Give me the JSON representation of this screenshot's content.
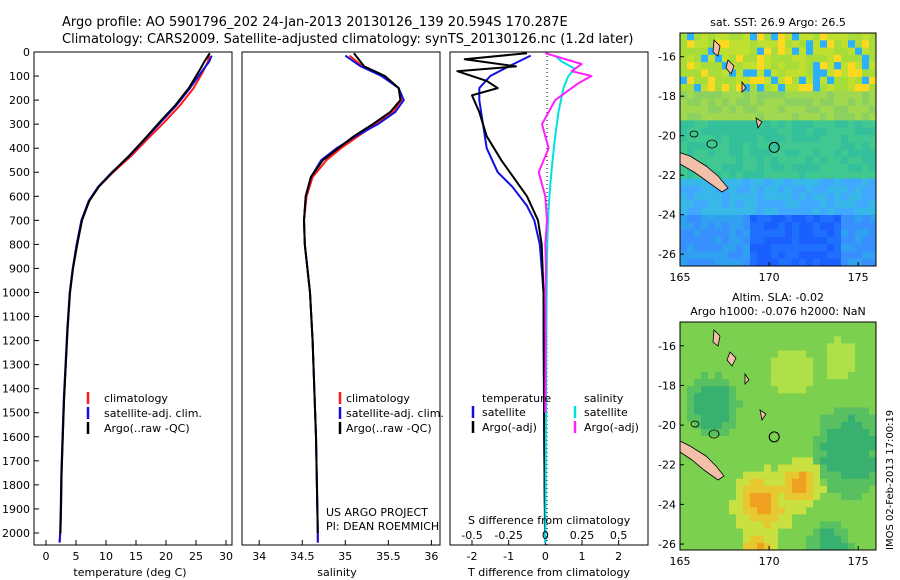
{
  "header": {
    "line1": "Argo profile: AO 5901796_202 24-Jan-2013 20130126_139 20.594S 170.287E",
    "line2": "Climatology: CARS2009. Satellite-adjusted climatology: synTS_20130126.nc (1.2d later)"
  },
  "colors": {
    "climatology": "#ff1a1a",
    "satellite": "#1010e0",
    "argo": "#000000",
    "salinity_satellite": "#00e0e0",
    "salinity_argo": "#ff20ff"
  },
  "chart_data": [
    {
      "type": "line",
      "panel": "temperature",
      "xlabel": "temperature (deg C)",
      "ylabel": "",
      "xlim": [
        -2,
        31
      ],
      "ylim": [
        2050,
        0
      ],
      "xticks": [
        0,
        5,
        10,
        15,
        20,
        25,
        30
      ],
      "yticks": [
        0,
        100,
        200,
        300,
        400,
        500,
        600,
        700,
        800,
        900,
        1000,
        1100,
        1200,
        1300,
        1400,
        1500,
        1600,
        1700,
        1800,
        1900,
        2000
      ],
      "legend": [
        "climatology",
        "satellite-adj. clim.",
        "Argo(..raw -QC)"
      ],
      "series": [
        {
          "name": "climatology",
          "x": [
            27.2,
            27.0,
            26.2,
            24.6,
            22.4,
            19.8,
            17.0,
            14.3,
            11.2,
            8.8,
            7.2,
            6.0,
            5.2,
            4.5,
            4.0,
            3.6,
            3.3,
            3.0,
            2.8,
            2.6,
            2.5,
            2.4,
            2.3
          ],
          "y": [
            15,
            40,
            80,
            150,
            220,
            290,
            360,
            430,
            500,
            560,
            620,
            700,
            800,
            900,
            1000,
            1150,
            1300,
            1450,
            1600,
            1750,
            1900,
            2000,
            2040
          ]
        },
        {
          "name": "satellite-adj. clim.",
          "x": [
            27.6,
            27.2,
            26.0,
            24.0,
            21.8,
            19.2,
            16.6,
            14.0,
            11.0,
            8.7,
            7.1,
            5.9,
            5.1,
            4.45,
            3.95,
            3.55,
            3.25,
            2.95,
            2.75,
            2.55,
            2.45,
            2.35,
            2.25
          ],
          "y": [
            15,
            40,
            80,
            150,
            220,
            290,
            360,
            430,
            500,
            560,
            620,
            700,
            800,
            900,
            1000,
            1150,
            1300,
            1450,
            1600,
            1750,
            1900,
            2000,
            2040
          ]
        },
        {
          "name": "Argo(..raw -QC)",
          "x": [
            27.3,
            26.4,
            25.5,
            23.8,
            21.6,
            19.0,
            16.5,
            13.9,
            11.1,
            8.8,
            7.2,
            6.0,
            5.2,
            4.5,
            4.0,
            3.6,
            3.3,
            3.0,
            2.8,
            2.6,
            2.5,
            2.4
          ],
          "y": [
            5,
            40,
            80,
            150,
            220,
            290,
            360,
            430,
            500,
            560,
            620,
            700,
            800,
            900,
            1000,
            1150,
            1300,
            1450,
            1600,
            1750,
            1900,
            2000
          ]
        }
      ]
    },
    {
      "type": "line",
      "panel": "salinity",
      "xlabel": "salinity",
      "ylabel": "",
      "xlim": [
        33.8,
        36.1
      ],
      "ylim": [
        2050,
        0
      ],
      "xticks": [
        34,
        34.5,
        35,
        35.5,
        36
      ],
      "legend": [
        "climatology",
        "satellite-adj. clim.",
        "Argo(..raw -QC)"
      ],
      "series": [
        {
          "name": "climatology",
          "x": [
            35.05,
            35.2,
            35.45,
            35.62,
            35.65,
            35.55,
            35.35,
            35.15,
            34.95,
            34.78,
            34.62,
            34.55,
            34.52,
            34.53,
            34.56,
            34.59,
            34.62,
            34.64,
            34.66,
            34.67,
            34.68,
            34.68
          ],
          "y": [
            15,
            60,
            100,
            150,
            200,
            250,
            300,
            350,
            400,
            450,
            520,
            600,
            700,
            800,
            900,
            1000,
            1200,
            1400,
            1600,
            1800,
            2000,
            2040
          ]
        },
        {
          "name": "satellite-adj. clim.",
          "x": [
            35.0,
            35.18,
            35.42,
            35.62,
            35.68,
            35.58,
            35.38,
            35.12,
            34.9,
            34.72,
            34.6,
            34.54,
            34.52,
            34.53,
            34.56,
            34.59,
            34.62,
            34.64,
            34.66,
            34.67,
            34.68,
            34.68
          ],
          "y": [
            15,
            60,
            100,
            150,
            200,
            250,
            300,
            350,
            400,
            450,
            520,
            600,
            700,
            800,
            900,
            1000,
            1200,
            1400,
            1600,
            1800,
            2000,
            2040
          ]
        },
        {
          "name": "Argo(..raw -QC)",
          "x": [
            35.1,
            35.22,
            35.46,
            35.62,
            35.64,
            35.52,
            35.32,
            35.1,
            34.92,
            34.74,
            34.6,
            34.54,
            34.52,
            34.53,
            34.56,
            34.59,
            34.62,
            34.64,
            34.66,
            34.67,
            34.68
          ],
          "y": [
            5,
            60,
            100,
            150,
            200,
            250,
            300,
            350,
            400,
            450,
            520,
            600,
            700,
            800,
            900,
            1000,
            1200,
            1400,
            1600,
            1800,
            2000
          ]
        }
      ]
    },
    {
      "type": "line",
      "panel": "differences",
      "xlabel": "T difference from climatology",
      "xlabel_top": "S difference from climatology",
      "xlim": [
        -2.6,
        2.8
      ],
      "ylim": [
        2050,
        0
      ],
      "xticks": [
        -2,
        -1,
        0,
        1,
        2
      ],
      "xticks_s": [
        "-0.5",
        "-0.25",
        "0",
        "0.25",
        "0.5"
      ],
      "legend_titles": [
        "temperature",
        "salinity"
      ],
      "legend": [
        "satellite",
        "Argo(-adj)",
        "satellite",
        "Argo(-adj)"
      ],
      "series": [
        {
          "name": "temperature satellite",
          "x": [
            -0.4,
            -1.0,
            -1.5,
            -1.8,
            -1.8,
            -1.7,
            -1.6,
            -1.3,
            -0.9,
            -0.5,
            -0.3,
            -0.15,
            -0.1,
            -0.05,
            -0.05,
            -0.04,
            -0.03,
            -0.02,
            -0.01,
            0
          ],
          "y": [
            15,
            60,
            100,
            150,
            200,
            300,
            400,
            500,
            560,
            640,
            700,
            800,
            900,
            1000,
            1200,
            1400,
            1600,
            1800,
            1900,
            2040
          ]
        },
        {
          "name": "temperature Argo(-adj)",
          "x": [
            -0.5,
            -2.2,
            -0.8,
            -2.4,
            -1.6,
            -1.3,
            -2.0,
            -1.8,
            -1.6,
            -1.2,
            -0.5,
            -0.2,
            -0.1,
            -0.05,
            -0.04,
            -0.03,
            -0.02,
            -0.01
          ],
          "y": [
            5,
            30,
            60,
            80,
            120,
            150,
            180,
            250,
            350,
            450,
            600,
            700,
            800,
            1000,
            1200,
            1500,
            1800,
            2000
          ]
        },
        {
          "name": "salinity satellite",
          "x": [
            0.3,
            0.5,
            0.9,
            0.7,
            0.55,
            0.4,
            0.3,
            0.22,
            0.15,
            0.1,
            0.07,
            0.05,
            0.04,
            0.03,
            0.02,
            0.01,
            0.0
          ],
          "y": [
            15,
            40,
            70,
            100,
            150,
            250,
            350,
            450,
            550,
            650,
            750,
            850,
            1000,
            1200,
            1500,
            1800,
            2040
          ]
        },
        {
          "name": "salinity Argo(-adj)",
          "x": [
            0.0,
            1.1,
            0.8,
            1.4,
            1.0,
            0.3,
            -0.1,
            0.1,
            -0.2,
            0.0,
            0.05,
            0.0,
            0.02,
            0.0,
            0.01,
            0.0
          ],
          "y": [
            5,
            50,
            80,
            100,
            130,
            200,
            300,
            400,
            500,
            600,
            700,
            800,
            900,
            1000,
            1200,
            1500
          ]
        }
      ]
    },
    {
      "type": "heatmap",
      "panel": "sst_map",
      "title": "sat. SST: 26.9 Argo: 26.5",
      "xlim": [
        165,
        176
      ],
      "ylim": [
        -26.6,
        -14.8
      ],
      "xticks": [
        165,
        170,
        175
      ],
      "yticks": [
        -16,
        -18,
        -20,
        -22,
        -24,
        -26
      ],
      "argo_position": {
        "lon": 170.287,
        "lat": -20.594
      }
    },
    {
      "type": "heatmap",
      "panel": "sla_map",
      "title_line1": "Altim. SLA: -0.02",
      "title_line2": "Argo h1000: -0.076 h2000: NaN",
      "xlim": [
        165,
        176
      ],
      "ylim": [
        -26.3,
        -14.8
      ],
      "xticks": [
        165,
        170,
        175
      ],
      "yticks": [
        -16,
        -18,
        -20,
        -22,
        -24,
        -26
      ],
      "argo_position": {
        "lon": 170.287,
        "lat": -20.594
      }
    }
  ],
  "annotations": {
    "project_line1": "US ARGO PROJECT",
    "project_line2": "PI: DEAN ROEMMICH",
    "side_stamp": "IMOS 02-Feb-2013 17:00:19"
  }
}
